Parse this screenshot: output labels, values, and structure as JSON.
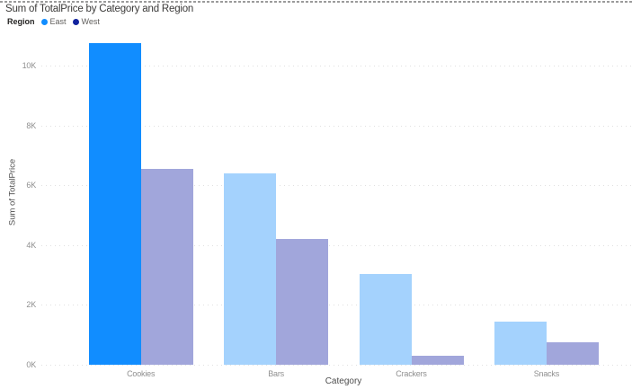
{
  "title": "Sum of TotalPrice by Category and Region",
  "legend": {
    "label": "Region",
    "items": [
      {
        "name": "East",
        "color": "#118DFF"
      },
      {
        "name": "West",
        "color": "#12239E"
      }
    ]
  },
  "chart_data": {
    "type": "bar",
    "title": "Sum of TotalPrice by Category and Region",
    "categories": [
      "Cookies",
      "Bars",
      "Crackers",
      "Snacks"
    ],
    "series": [
      {
        "name": "East",
        "values": [
          10780,
          6400,
          3040,
          1460
        ],
        "color": "#118DFF",
        "color_dimmed": "#A4D2FD"
      },
      {
        "name": "West",
        "values": [
          6570,
          4220,
          320,
          770
        ],
        "color": "#12239E",
        "color_dimmed": "#A1A6DB"
      }
    ],
    "highlight": {
      "series": "East",
      "category": "Cookies"
    },
    "xlabel": "Category",
    "ylabel": "Sum of TotalPrice",
    "ylim": [
      0,
      11000
    ],
    "yticks": [
      0,
      2000,
      4000,
      6000,
      8000,
      10000
    ],
    "ytick_labels": [
      "0K",
      "2K",
      "4K",
      "6K",
      "8K",
      "10K"
    ],
    "grid": "horizontal-dotted",
    "legend_position": "top-left"
  }
}
